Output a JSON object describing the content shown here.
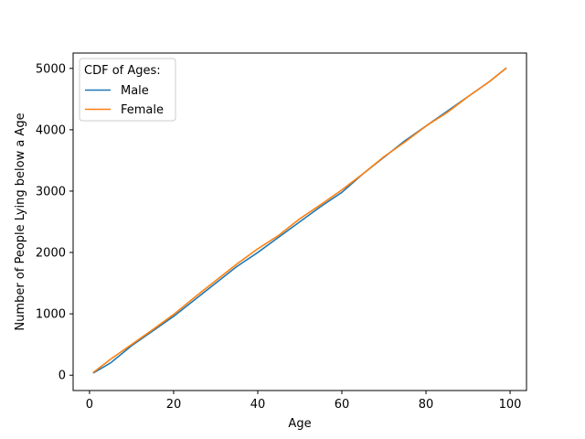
{
  "chart_data": {
    "type": "line",
    "xlabel": "Age",
    "ylabel": "Number of People Lying below a Age",
    "xlim": [
      -3.9,
      103.9
    ],
    "ylim": [
      -250,
      5250
    ],
    "xticks": [
      0,
      20,
      40,
      60,
      80,
      100
    ],
    "yticks": [
      0,
      1000,
      2000,
      3000,
      4000,
      5000
    ],
    "grid": false,
    "legend": {
      "title": "CDF of Ages:",
      "placement": "top-left"
    },
    "series": [
      {
        "name": "Male",
        "color": "#1f77b4",
        "x": [
          1,
          5,
          10,
          15,
          20,
          25,
          30,
          35,
          40,
          45,
          50,
          55,
          60,
          65,
          70,
          75,
          80,
          85,
          90,
          95,
          99
        ],
        "y": [
          40,
          200,
          480,
          720,
          960,
          1230,
          1500,
          1770,
          2000,
          2250,
          2500,
          2750,
          2980,
          3280,
          3550,
          3820,
          4060,
          4300,
          4540,
          4780,
          5000
        ]
      },
      {
        "name": "Female",
        "color": "#ff7f0e",
        "x": [
          1,
          5,
          10,
          15,
          20,
          25,
          30,
          35,
          40,
          45,
          50,
          55,
          60,
          65,
          70,
          75,
          80,
          85,
          90,
          95,
          99
        ],
        "y": [
          50,
          260,
          500,
          740,
          990,
          1270,
          1540,
          1810,
          2060,
          2280,
          2550,
          2780,
          3020,
          3280,
          3560,
          3800,
          4060,
          4280,
          4540,
          4780,
          5000
        ]
      }
    ]
  }
}
